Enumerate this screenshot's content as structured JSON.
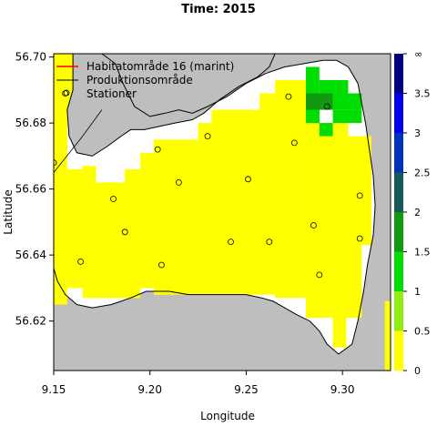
{
  "title": "Time: 2015",
  "chart_data": {
    "type": "heatmap",
    "xlabel": "Longitude",
    "ylabel": "Latitude",
    "xlim": [
      9.15,
      9.325
    ],
    "ylim": [
      56.605,
      56.701
    ],
    "x_ticks": [
      9.15,
      9.2,
      9.25,
      9.3
    ],
    "x_tick_labels": [
      "9.15",
      "9.20",
      "9.25",
      "9.30"
    ],
    "y_ticks": [
      56.62,
      56.64,
      56.66,
      56.68,
      56.7
    ],
    "y_tick_labels": [
      "56.62",
      "56.64",
      "56.66",
      "56.68",
      "56.70"
    ],
    "legend_position": "top-left",
    "legend": [
      {
        "label": "Habitatområde 16 (marint)",
        "kind": "line",
        "color": "#ff0000"
      },
      {
        "label": "Produktionsområde",
        "kind": "line",
        "color": "#000000"
      },
      {
        "label": "Stationer",
        "kind": "point",
        "color": "#000000"
      }
    ],
    "colorbar": {
      "tick_labels": [
        "0",
        "0.5",
        "1",
        "1.5",
        "2",
        "2.5",
        "3",
        "3.5",
        "∞"
      ],
      "bins": [
        {
          "range": [
            0,
            0.5
          ],
          "color": "#ffff00"
        },
        {
          "range": [
            0.5,
            1.0
          ],
          "color": "#90ee10"
        },
        {
          "range": [
            1.0,
            1.5
          ],
          "color": "#00dd00"
        },
        {
          "range": [
            1.5,
            2.0
          ],
          "color": "#119911"
        },
        {
          "range": [
            2.0,
            2.5
          ],
          "color": "#145a5a"
        },
        {
          "range": [
            2.5,
            3.0
          ],
          "color": "#0033bb"
        },
        {
          "range": [
            3.0,
            3.5
          ],
          "color": "#0000ee"
        },
        {
          "range": [
            3.5,
            100
          ],
          "color": "#000080"
        }
      ]
    },
    "land_color": "#bebebe",
    "water_color": "#ffffff",
    "cells": [
      {
        "lon": [
          9.15,
          9.165
        ],
        "lat": [
          56.696,
          56.701
        ],
        "v": 0.2
      },
      {
        "lon": [
          9.15,
          9.157
        ],
        "lat": [
          56.666,
          56.696
        ],
        "v": 0.2
      },
      {
        "lon": [
          9.157,
          9.165
        ],
        "lat": [
          56.684,
          56.696
        ],
        "v": 0.2
      },
      {
        "lon": [
          9.15,
          9.157
        ],
        "lat": [
          56.625,
          56.666
        ],
        "v": 0.2
      },
      {
        "lon": [
          9.155,
          9.165
        ],
        "lat": [
          56.63,
          56.666
        ],
        "v": 0.2
      },
      {
        "lon": [
          9.165,
          9.172
        ],
        "lat": [
          56.627,
          56.667
        ],
        "v": 0.2
      },
      {
        "lon": [
          9.172,
          9.187
        ],
        "lat": [
          56.627,
          56.662
        ],
        "v": 0.2
      },
      {
        "lon": [
          9.187,
          9.195
        ],
        "lat": [
          56.627,
          56.666
        ],
        "v": 0.2
      },
      {
        "lon": [
          9.195,
          9.202
        ],
        "lat": [
          56.63,
          56.671
        ],
        "v": 0.2
      },
      {
        "lon": [
          9.202,
          9.225
        ],
        "lat": [
          56.628,
          56.675
        ],
        "v": 0.2
      },
      {
        "lon": [
          9.225,
          9.232
        ],
        "lat": [
          56.628,
          56.68
        ],
        "v": 0.2
      },
      {
        "lon": [
          9.232,
          9.257
        ],
        "lat": [
          56.628,
          56.684
        ],
        "v": 0.2
      },
      {
        "lon": [
          9.257,
          9.265
        ],
        "lat": [
          56.628,
          56.689
        ],
        "v": 0.2
      },
      {
        "lon": [
          9.265,
          9.281
        ],
        "lat": [
          56.627,
          56.693
        ],
        "v": 0.2
      },
      {
        "lon": [
          9.281,
          9.295
        ],
        "lat": [
          56.621,
          56.68
        ],
        "v": 0.2
      },
      {
        "lon": [
          9.295,
          9.303
        ],
        "lat": [
          56.621,
          56.68
        ],
        "v": 0.2
      },
      {
        "lon": [
          9.303,
          9.31
        ],
        "lat": [
          56.621,
          56.676
        ],
        "v": 0.2
      },
      {
        "lon": [
          9.31,
          9.315
        ],
        "lat": [
          56.643,
          56.676
        ],
        "v": 0.2
      },
      {
        "lon": [
          9.295,
          9.302
        ],
        "lat": [
          56.612,
          56.621
        ],
        "v": 0.2
      },
      {
        "lon": [
          9.288,
          9.295
        ],
        "lat": [
          56.676,
          56.68
        ],
        "v": 0.2
      },
      {
        "lon": [
          9.281,
          9.288
        ],
        "lat": [
          56.676,
          56.68
        ],
        "v": 0.2
      },
      {
        "lon": [
          9.322,
          9.325
        ],
        "lat": [
          56.605,
          56.626
        ],
        "v": 0.2
      },
      {
        "lon": [
          9.281,
          9.288
        ],
        "lat": [
          56.68,
          56.697
        ],
        "v": 1.2
      },
      {
        "lon": [
          9.288,
          9.303
        ],
        "lat": [
          56.689,
          56.693
        ],
        "v": 1.2
      },
      {
        "lon": [
          9.295,
          9.303
        ],
        "lat": [
          56.684,
          56.689
        ],
        "v": 1.2
      },
      {
        "lon": [
          9.288,
          9.295
        ],
        "lat": [
          56.676,
          56.68
        ],
        "v": 1.2
      },
      {
        "lon": [
          9.295,
          9.31
        ],
        "lat": [
          56.68,
          56.684
        ],
        "v": 1.2
      },
      {
        "lon": [
          9.303,
          9.31
        ],
        "lat": [
          56.684,
          56.689
        ],
        "v": 1.2
      },
      {
        "lon": [
          9.281,
          9.295
        ],
        "lat": [
          56.684,
          56.689
        ],
        "v": 1.8
      },
      {
        "lon": [
          9.281,
          9.288
        ],
        "lat": [
          56.68,
          56.684
        ],
        "v": 1.2
      }
    ],
    "stations": [
      {
        "lon": 9.15,
        "lat": 56.668
      },
      {
        "lon": 9.156,
        "lat": 56.689
      },
      {
        "lon": 9.164,
        "lat": 56.638
      },
      {
        "lon": 9.181,
        "lat": 56.657
      },
      {
        "lon": 9.187,
        "lat": 56.647
      },
      {
        "lon": 9.204,
        "lat": 56.672
      },
      {
        "lon": 9.206,
        "lat": 56.637
      },
      {
        "lon": 9.215,
        "lat": 56.662
      },
      {
        "lon": 9.23,
        "lat": 56.676
      },
      {
        "lon": 9.242,
        "lat": 56.644
      },
      {
        "lon": 9.251,
        "lat": 56.663
      },
      {
        "lon": 9.262,
        "lat": 56.644
      },
      {
        "lon": 9.272,
        "lat": 56.688
      },
      {
        "lon": 9.275,
        "lat": 56.674
      },
      {
        "lon": 9.285,
        "lat": 56.649
      },
      {
        "lon": 9.288,
        "lat": 56.634
      },
      {
        "lon": 9.292,
        "lat": 56.685
      },
      {
        "lon": 9.309,
        "lat": 56.658
      },
      {
        "lon": 9.309,
        "lat": 56.645
      }
    ],
    "water_polygon": [
      [
        9.15,
        56.701
      ],
      [
        9.175,
        56.701
      ],
      [
        9.182,
        56.698
      ],
      [
        9.186,
        56.692
      ],
      [
        9.192,
        56.685
      ],
      [
        9.2,
        56.682
      ],
      [
        9.208,
        56.683
      ],
      [
        9.215,
        56.684
      ],
      [
        9.222,
        56.683
      ],
      [
        9.23,
        56.685
      ],
      [
        9.24,
        56.688
      ],
      [
        9.25,
        56.692
      ],
      [
        9.26,
        56.695
      ],
      [
        9.27,
        56.697
      ],
      [
        9.28,
        56.698
      ],
      [
        9.29,
        56.699
      ],
      [
        9.297,
        56.699
      ],
      [
        9.303,
        56.697
      ],
      [
        9.308,
        56.692
      ],
      [
        9.31,
        56.686
      ],
      [
        9.312,
        56.68
      ],
      [
        9.314,
        56.672
      ],
      [
        9.316,
        56.664
      ],
      [
        9.317,
        56.655
      ],
      [
        9.316,
        56.646
      ],
      [
        9.313,
        56.637
      ],
      [
        9.311,
        56.629
      ],
      [
        9.308,
        56.62
      ],
      [
        9.305,
        56.613
      ],
      [
        9.298,
        56.61
      ],
      [
        9.292,
        56.613
      ],
      [
        9.288,
        56.617
      ],
      [
        9.283,
        56.62
      ],
      [
        9.276,
        56.622
      ],
      [
        9.27,
        56.624
      ],
      [
        9.264,
        56.626
      ],
      [
        9.258,
        56.627
      ],
      [
        9.25,
        56.628
      ],
      [
        9.24,
        56.628
      ],
      [
        9.23,
        56.628
      ],
      [
        9.22,
        56.628
      ],
      [
        9.21,
        56.629
      ],
      [
        9.198,
        56.629
      ],
      [
        9.19,
        56.627
      ],
      [
        9.18,
        56.625
      ],
      [
        9.17,
        56.624
      ],
      [
        9.162,
        56.625
      ],
      [
        9.156,
        56.628
      ],
      [
        9.152,
        56.632
      ],
      [
        9.15,
        56.636
      ]
    ],
    "inner_land_polygon": [
      [
        9.16,
        56.701
      ],
      [
        9.16,
        56.69
      ],
      [
        9.157,
        56.684
      ],
      [
        9.158,
        56.676
      ],
      [
        9.162,
        56.671
      ],
      [
        9.17,
        56.67
      ],
      [
        9.178,
        56.673
      ],
      [
        9.185,
        56.676
      ],
      [
        9.19,
        56.678
      ],
      [
        9.197,
        56.678
      ],
      [
        9.205,
        56.679
      ],
      [
        9.213,
        56.68
      ],
      [
        9.222,
        56.681
      ],
      [
        9.228,
        56.683
      ],
      [
        9.236,
        56.687
      ],
      [
        9.246,
        56.691
      ],
      [
        9.256,
        56.694
      ],
      [
        9.262,
        56.697
      ],
      [
        9.265,
        56.701
      ]
    ],
    "production_line": [
      [
        9.15,
        56.665
      ],
      [
        9.165,
        56.676
      ],
      [
        9.175,
        56.684
      ]
    ]
  }
}
